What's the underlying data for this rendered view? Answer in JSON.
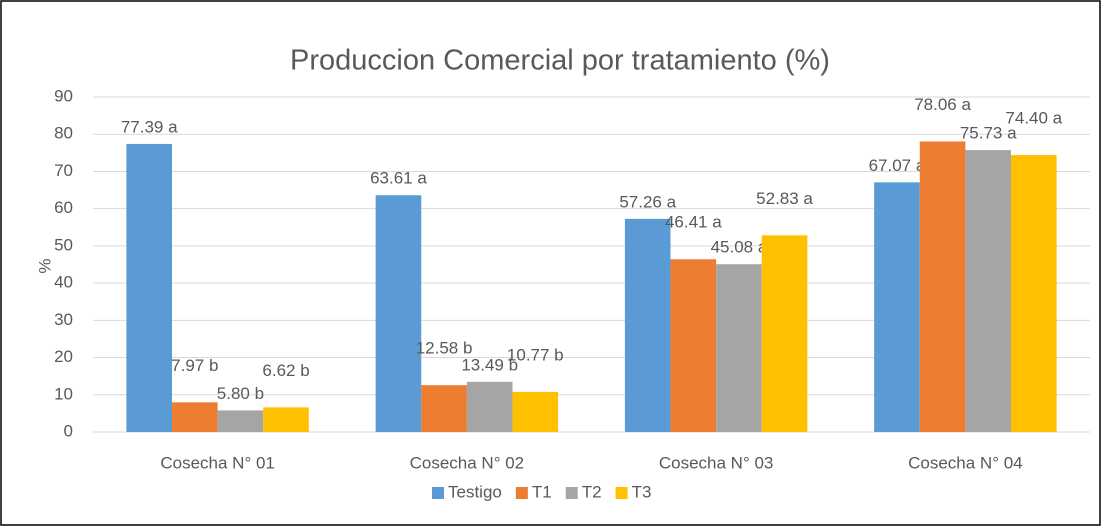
{
  "chart_data": {
    "type": "bar",
    "title": "Produccion Comercial por tratamiento (%)",
    "y_label": "%",
    "categories": [
      "Cosecha N° 01",
      "Cosecha N° 02",
      "Cosecha N° 03",
      "Cosecha N° 04"
    ],
    "series": [
      {
        "name": "Testigo",
        "color": "#5b9bd5",
        "values": [
          77.39,
          63.61,
          57.26,
          67.07
        ],
        "value_labels": [
          "77.39 a",
          "63.61 a",
          "57.26 a",
          "67.07 a"
        ]
      },
      {
        "name": "T1",
        "color": "#ed7d31",
        "values": [
          7.97,
          12.58,
          46.41,
          78.06
        ],
        "value_labels": [
          "7.97 b",
          "12.58 b",
          "46.41 a",
          "78.06 a"
        ]
      },
      {
        "name": "T2",
        "color": "#a5a5a5",
        "values": [
          5.8,
          13.49,
          45.08,
          75.73
        ],
        "value_labels": [
          "5.80 b",
          "13.49 b",
          "45.08 a",
          "75.73 a"
        ]
      },
      {
        "name": "T3",
        "color": "#ffc000",
        "values": [
          6.62,
          10.77,
          52.83,
          74.4
        ],
        "value_labels": [
          "6.62 b",
          "10.77 b",
          "52.83 a",
          "74.40 a"
        ]
      }
    ],
    "ylim": [
      0,
      90
    ],
    "yticks": [
      0,
      10,
      20,
      30,
      40,
      50,
      60,
      70,
      80,
      90
    ],
    "grid": true,
    "legend": "bottom"
  }
}
